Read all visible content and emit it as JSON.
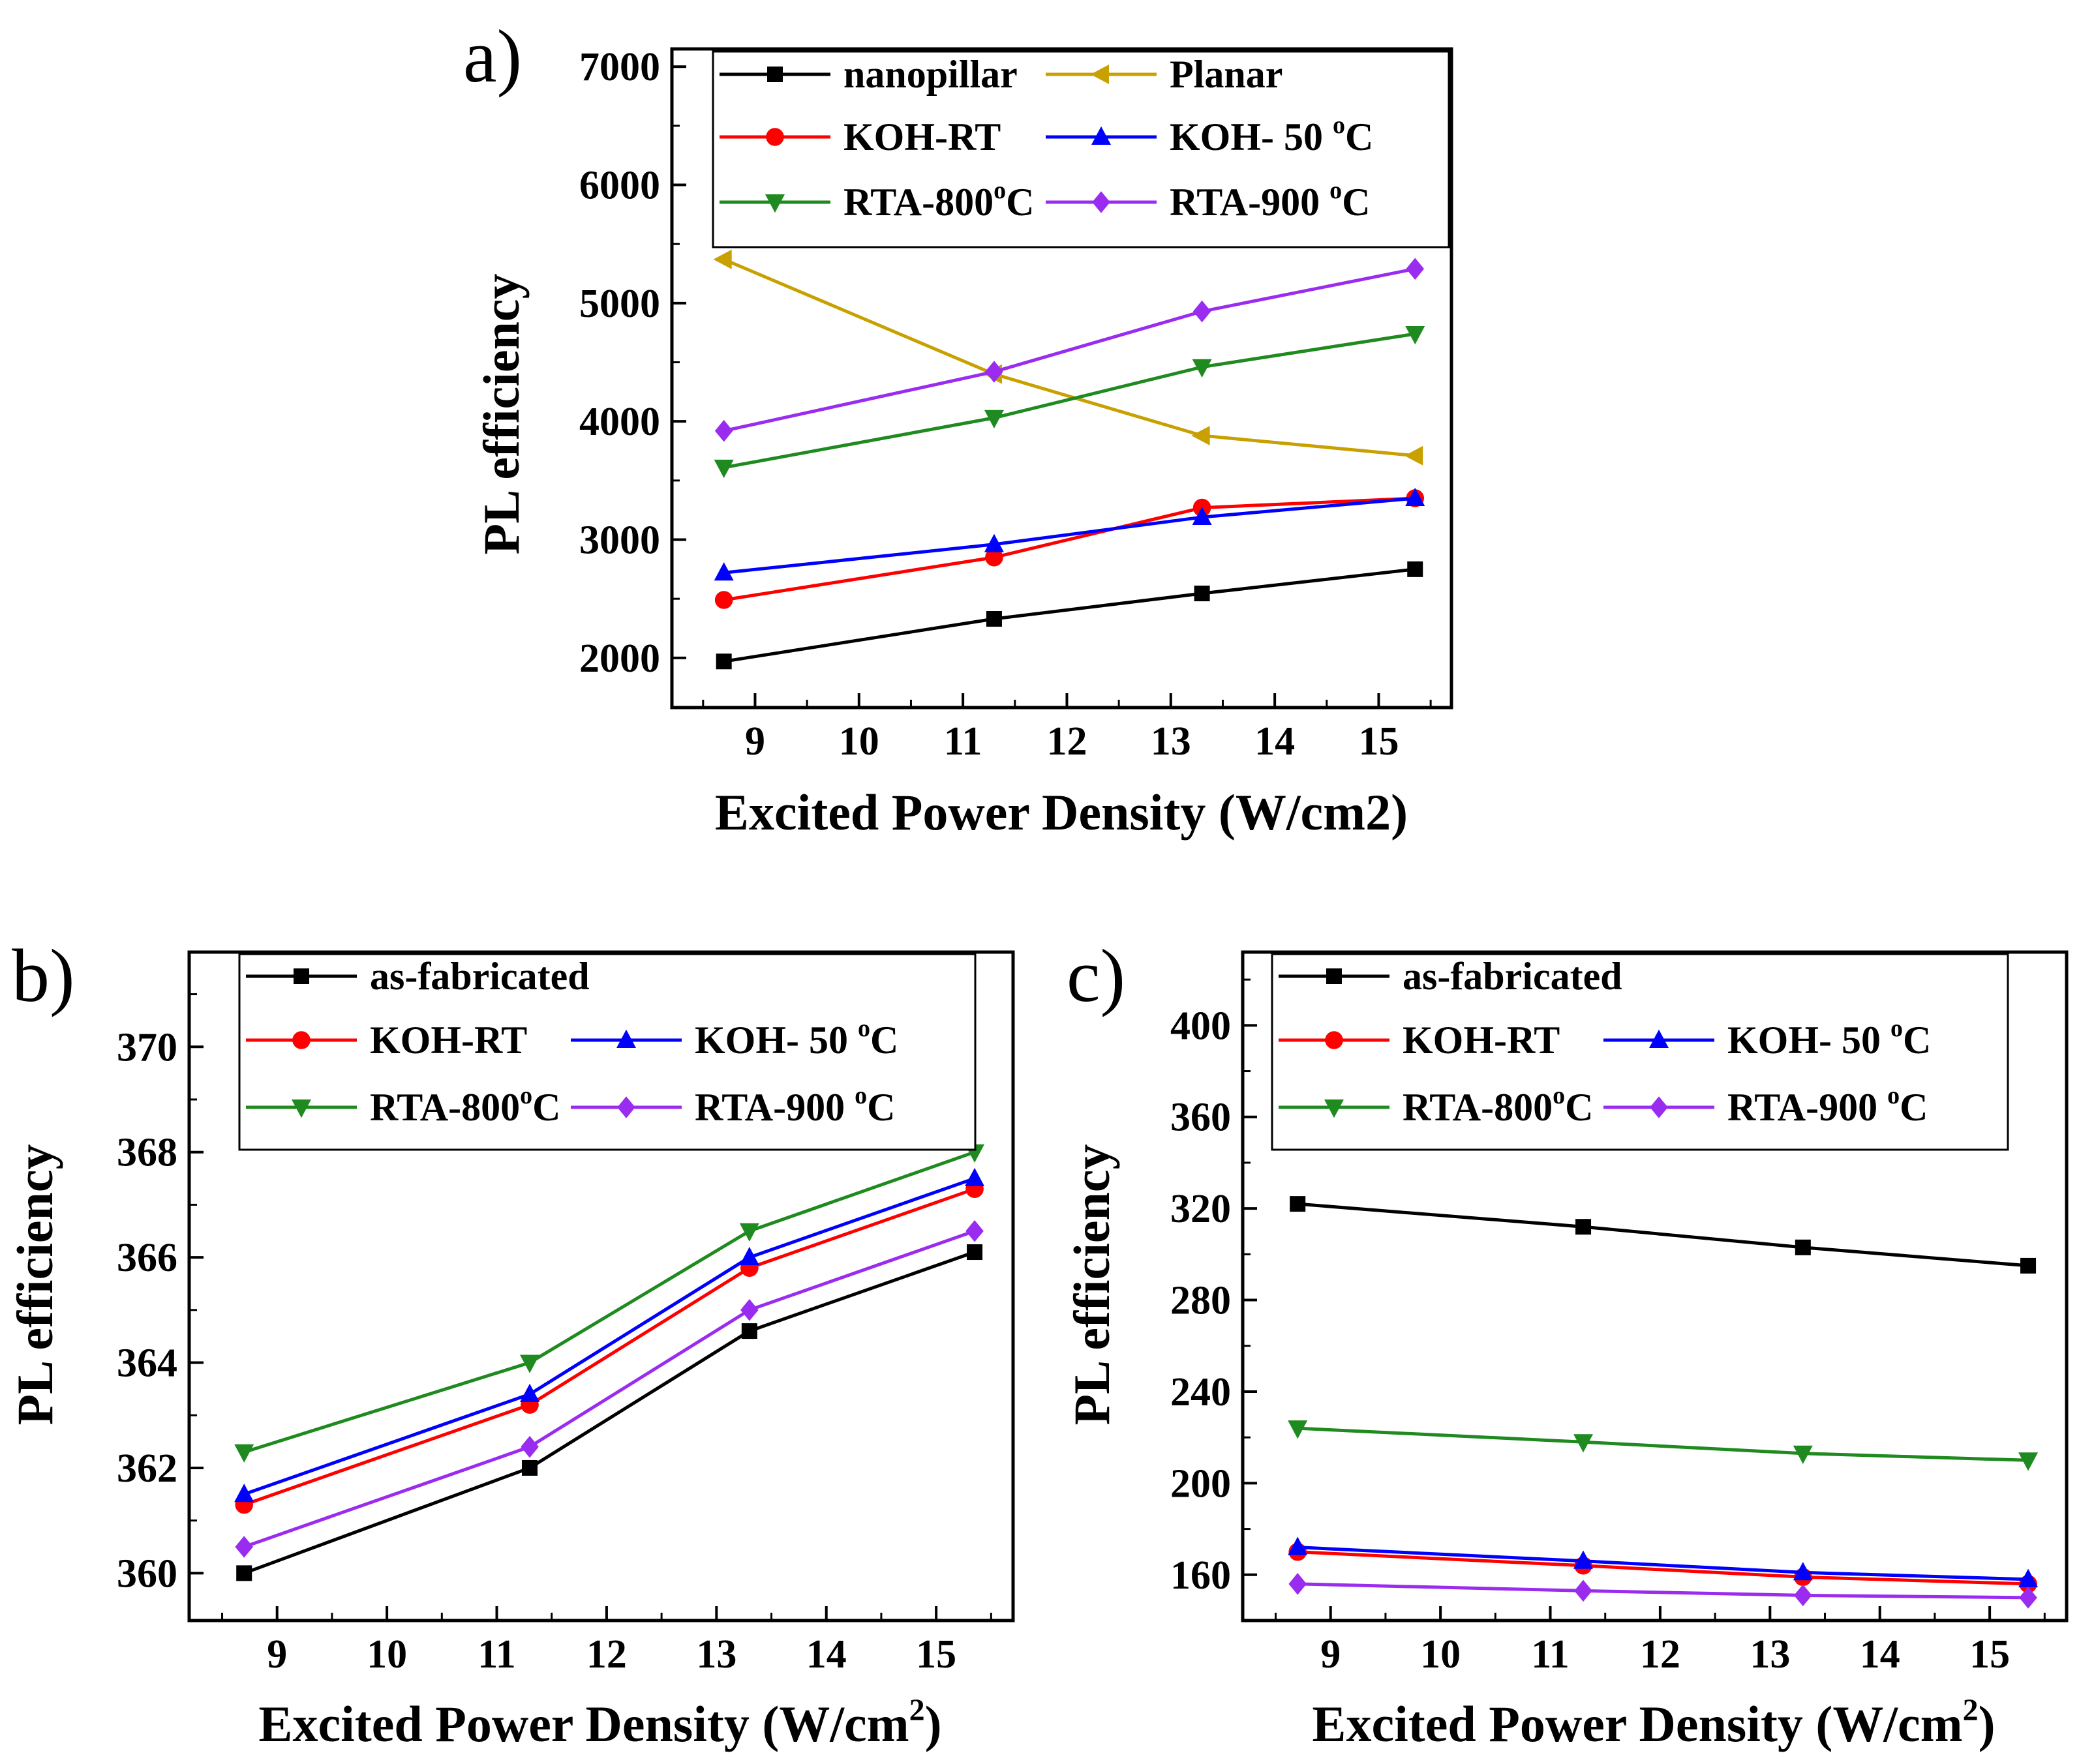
{
  "chart_data": [
    {
      "panel_label": "a)",
      "type": "line",
      "xlabel": "Excited Power Density (W/cm2)",
      "xlabel_main": "Excited Power Density (W/cm2)",
      "xlabel_sup": "",
      "xlabel_close": "",
      "ylabel": "PL efficiency",
      "xlim": [
        8.2,
        15.7
      ],
      "ylim": [
        1580,
        7150
      ],
      "xticks": [
        9,
        10,
        11,
        12,
        13,
        14,
        15
      ],
      "yticks": [
        2000,
        3000,
        4000,
        5000,
        6000,
        7000
      ],
      "x": [
        8.7,
        11.3,
        13.3,
        15.35
      ],
      "legend_cols": 2,
      "series": [
        {
          "name": "nanopillar",
          "color": "#000000",
          "marker": "square",
          "values": [
            1970,
            2330,
            2545,
            2750
          ]
        },
        {
          "name": "Planar",
          "color": "#c8a000",
          "marker": "triangle-left",
          "values": [
            5370,
            4400,
            3880,
            3710
          ]
        },
        {
          "name": "KOH-RT",
          "color": "#ff0000",
          "marker": "circle",
          "values": [
            2490,
            2850,
            3270,
            3350
          ]
        },
        {
          "name": "KOH- 50 °C",
          "name_main": "KOH- 50 ",
          "name_sup": "o",
          "name_tail": "C",
          "color": "#0000ff",
          "marker": "triangle-up",
          "values": [
            2720,
            2960,
            3190,
            3350
          ]
        },
        {
          "name": "RTA-800°C",
          "name_main": "RTA-800",
          "name_sup": "o",
          "name_tail": "C",
          "color": "#1f8a1f",
          "marker": "triangle-down",
          "values": [
            3610,
            4030,
            4460,
            4740
          ]
        },
        {
          "name": "RTA-900 °C",
          "name_main": "RTA-900 ",
          "name_sup": "o",
          "name_tail": "C",
          "color": "#9a2cf0",
          "marker": "diamond",
          "values": [
            3920,
            4420,
            4930,
            5290
          ]
        }
      ]
    },
    {
      "panel_label": "b)",
      "type": "line",
      "xlabel": "Excited Power Density (W/cm²)",
      "xlabel_main": "Excited Power Density (W/cm",
      "xlabel_sup": "2",
      "xlabel_close": ")",
      "ylabel": "PL efficiency",
      "xlim": [
        8.2,
        15.7
      ],
      "ylim": [
        359.1,
        371.8
      ],
      "xticks": [
        9,
        10,
        11,
        12,
        13,
        14,
        15
      ],
      "yticks": [
        360,
        362,
        364,
        366,
        368,
        370
      ],
      "x": [
        8.7,
        11.3,
        13.3,
        15.35
      ],
      "legend_cols": 2,
      "legend_single_first": true,
      "series": [
        {
          "name": "as-fabricated",
          "color": "#000000",
          "marker": "square",
          "values": [
            360.0,
            362.0,
            364.6,
            366.1
          ]
        },
        {
          "name": "KOH-RT",
          "color": "#ff0000",
          "marker": "circle",
          "values": [
            361.3,
            363.2,
            365.8,
            367.3
          ]
        },
        {
          "name": "KOH- 50 °C",
          "name_main": "KOH- 50 ",
          "name_sup": "o",
          "name_tail": "C",
          "color": "#0000ff",
          "marker": "triangle-up",
          "values": [
            361.5,
            363.4,
            366.0,
            367.5
          ]
        },
        {
          "name": "RTA-800°C",
          "name_main": "RTA-800",
          "name_sup": "o",
          "name_tail": "C",
          "color": "#1f8a1f",
          "marker": "triangle-down",
          "values": [
            362.3,
            364.0,
            366.5,
            368.0
          ]
        },
        {
          "name": "RTA-900 °C",
          "name_main": "RTA-900 ",
          "name_sup": "o",
          "name_tail": "C",
          "color": "#9a2cf0",
          "marker": "diamond",
          "values": [
            360.5,
            362.4,
            365.0,
            366.5
          ]
        }
      ]
    },
    {
      "panel_label": "c)",
      "type": "line",
      "xlabel": "Excited Power Density (W/cm²)",
      "xlabel_main": "Excited Power Density (W/cm",
      "xlabel_sup": "2",
      "xlabel_close": ")",
      "ylabel": "PL efficiency",
      "xlim": [
        8.2,
        15.7
      ],
      "ylim": [
        140,
        432
      ],
      "xticks": [
        9,
        10,
        11,
        12,
        13,
        14,
        15
      ],
      "yticks": [
        160,
        200,
        240,
        280,
        320,
        360,
        400
      ],
      "x": [
        8.7,
        11.3,
        13.3,
        15.35
      ],
      "legend_cols": 2,
      "legend_single_first": true,
      "series": [
        {
          "name": "as-fabricated",
          "color": "#000000",
          "marker": "square",
          "values": [
            322,
            312,
            303,
            295
          ]
        },
        {
          "name": "KOH-RT",
          "color": "#ff0000",
          "marker": "circle",
          "values": [
            170,
            164,
            159,
            156
          ]
        },
        {
          "name": "KOH- 50 °C",
          "name_main": "KOH- 50 ",
          "name_sup": "o",
          "name_tail": "C",
          "color": "#0000ff",
          "marker": "triangle-up",
          "values": [
            172,
            166,
            161,
            158
          ]
        },
        {
          "name": "RTA-800°C",
          "name_main": "RTA-800",
          "name_sup": "o",
          "name_tail": "C",
          "color": "#1f8a1f",
          "marker": "triangle-down",
          "values": [
            224,
            218,
            213,
            210
          ]
        },
        {
          "name": "RTA-900 °C",
          "name_main": "RTA-900 ",
          "name_sup": "o",
          "name_tail": "C",
          "color": "#9a2cf0",
          "marker": "diamond",
          "values": [
            156,
            153,
            151,
            150
          ]
        }
      ]
    }
  ]
}
